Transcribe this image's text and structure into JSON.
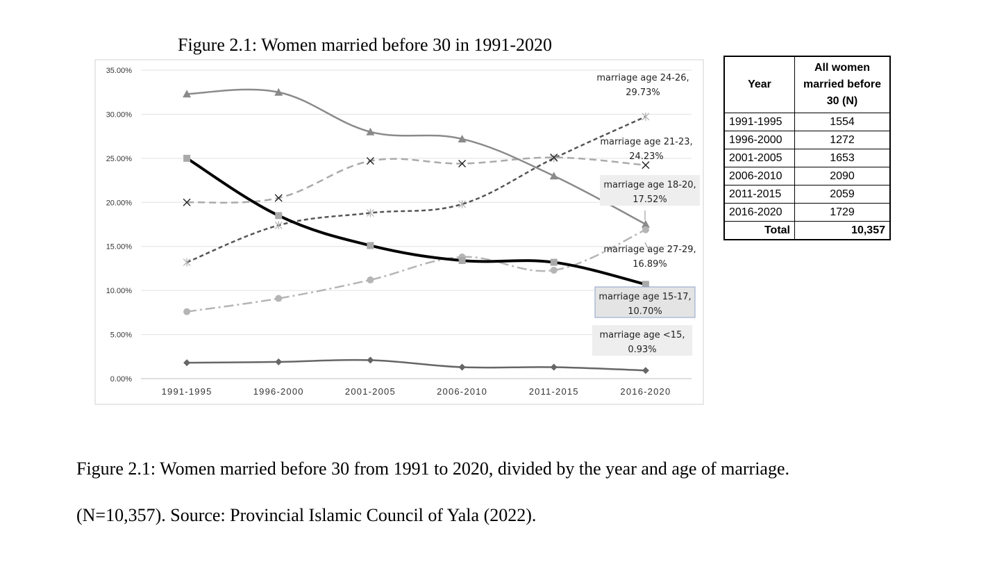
{
  "chart_data": {
    "type": "line",
    "title": "Figure 2.1: Women married before 30 in 1991-2020",
    "categories": [
      "1991-1995",
      "1996-2000",
      "2001-2005",
      "2006-2010",
      "2011-2015",
      "2016-2020"
    ],
    "yticks": [
      "0.00%",
      "5.00%",
      "10.00%",
      "15.00%",
      "20.00%",
      "25.00%",
      "30.00%",
      "35.00%"
    ],
    "ylim": [
      0,
      35
    ],
    "grid": true,
    "series": [
      {
        "name": "marriage age 24-26",
        "values": [
          13.2,
          17.4,
          18.8,
          19.8,
          25.0,
          29.73
        ],
        "marker": "star",
        "dash": "6,4",
        "color": "#555555",
        "label": "marriage age 24-26,\n29.73%"
      },
      {
        "name": "marriage age 21-23",
        "values": [
          20.0,
          20.5,
          24.7,
          24.4,
          25.1,
          24.23
        ],
        "marker": "x",
        "dash": "10,6",
        "color": "#aaaaaa",
        "label": "marriage age 21-23,\n24.23%"
      },
      {
        "name": "marriage age 18-20",
        "values": [
          32.3,
          32.5,
          28.0,
          27.2,
          23.0,
          17.52
        ],
        "marker": "triangle",
        "dash": "",
        "color": "#8a8a8a",
        "label": "marriage age 18-20,\n17.52%"
      },
      {
        "name": "marriage age 27-29",
        "values": [
          7.6,
          9.1,
          11.2,
          13.8,
          12.3,
          16.89
        ],
        "marker": "circle",
        "dash": "14,5,3,5",
        "color": "#b5b5b5",
        "label": "marriage age 27-29,\n16.89%"
      },
      {
        "name": "marriage age 15-17",
        "values": [
          25.0,
          18.5,
          15.1,
          13.4,
          13.2,
          10.7
        ],
        "marker": "square",
        "dash": "",
        "color": "#000000",
        "label": "marriage age 15-17,\n10.70%"
      },
      {
        "name": "marriage age <15",
        "values": [
          1.8,
          1.9,
          2.1,
          1.3,
          1.3,
          0.93
        ],
        "marker": "diamond",
        "dash": "",
        "color": "#666666",
        "label": "marriage age <15,\n0.93%"
      }
    ]
  },
  "table": {
    "headers": [
      "Year",
      "All women married before 30 (N)"
    ],
    "rows": [
      [
        "1991-1995",
        "1554"
      ],
      [
        "1996-2000",
        "1272"
      ],
      [
        "2001-2005",
        "1653"
      ],
      [
        "2006-2010",
        "2090"
      ],
      [
        "2011-2015",
        "2059"
      ],
      [
        "2016-2020",
        "1729"
      ]
    ],
    "total_label": "Total",
    "total_value": "10,357"
  },
  "caption": {
    "line1": "Figure 2.1: Women married before 30 from 1991 to 2020, divided by the year and age of marriage.",
    "line2": "(N=10,357). Source: Provincial Islamic Council of Yala (2022)."
  }
}
